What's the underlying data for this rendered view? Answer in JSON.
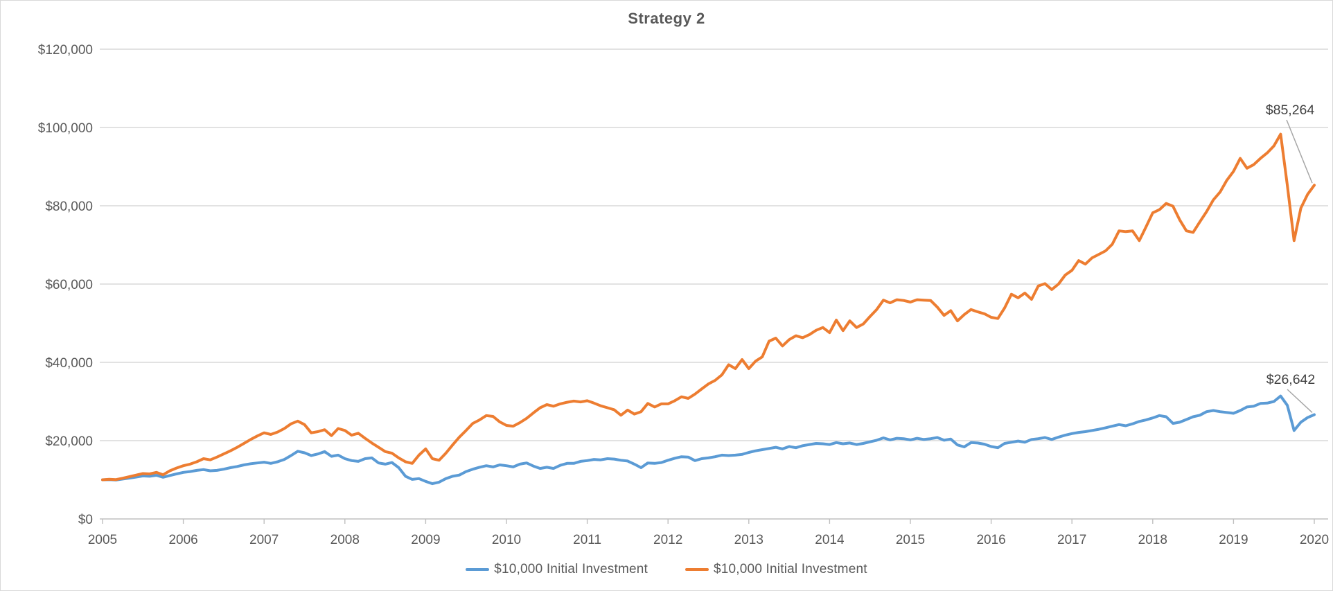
{
  "title": "Strategy 2",
  "legend": [
    {
      "label": "$10,000 Initial Investment",
      "color": "#5B9BD5"
    },
    {
      "label": "$10,000 Initial Investment",
      "color": "#ED7D31"
    }
  ],
  "chart_data": {
    "type": "line",
    "title": "Strategy 2",
    "xlabel": "",
    "ylabel": "",
    "ylim": [
      0,
      120000
    ],
    "grid": true,
    "legend_position": "bottom",
    "x_unit": "months from Jan 2005 to Jan 2020",
    "x_ticks": [
      "2005",
      "2006",
      "2007",
      "2008",
      "2009",
      "2010",
      "2011",
      "2012",
      "2013",
      "2014",
      "2015",
      "2016",
      "2017",
      "2018",
      "2019",
      "2020"
    ],
    "y_ticks": [
      "$0",
      "$20,000",
      "$40,000",
      "$60,000",
      "$80,000",
      "$100,000",
      "$120,000"
    ],
    "series": [
      {
        "name": "$10,000 Initial Investment",
        "color": "#5B9BD5",
        "end_label": "$26,642",
        "end_value": 26642,
        "values_thousands_usd": [
          10.0,
          10.05,
          9.95,
          10.2,
          10.45,
          10.7,
          11.0,
          10.9,
          11.15,
          10.65,
          11.1,
          11.5,
          11.9,
          12.1,
          12.4,
          12.6,
          12.3,
          12.4,
          12.7,
          13.1,
          13.4,
          13.8,
          14.1,
          14.3,
          14.5,
          14.2,
          14.6,
          15.2,
          16.2,
          17.3,
          16.9,
          16.2,
          16.6,
          17.2,
          16.0,
          16.3,
          15.4,
          14.9,
          14.7,
          15.4,
          15.6,
          14.3,
          14.0,
          14.4,
          13.1,
          10.9,
          10.1,
          10.3,
          9.6,
          9.0,
          9.4,
          10.3,
          10.9,
          11.2,
          12.1,
          12.7,
          13.2,
          13.6,
          13.3,
          13.8,
          13.6,
          13.3,
          14.0,
          14.3,
          13.5,
          12.9,
          13.2,
          12.9,
          13.7,
          14.2,
          14.2,
          14.7,
          14.9,
          15.2,
          15.1,
          15.4,
          15.3,
          15.0,
          14.8,
          14.0,
          13.1,
          14.3,
          14.2,
          14.4,
          15.0,
          15.5,
          15.9,
          15.8,
          14.9,
          15.4,
          15.6,
          15.9,
          16.3,
          16.2,
          16.3,
          16.5,
          17.0,
          17.4,
          17.7,
          18.0,
          18.3,
          17.9,
          18.5,
          18.2,
          18.7,
          19.0,
          19.3,
          19.2,
          19.0,
          19.5,
          19.2,
          19.4,
          19.0,
          19.3,
          19.7,
          20.1,
          20.7,
          20.2,
          20.6,
          20.5,
          20.2,
          20.6,
          20.3,
          20.5,
          20.8,
          20.1,
          20.4,
          18.9,
          18.4,
          19.5,
          19.4,
          19.1,
          18.5,
          18.2,
          19.3,
          19.6,
          19.9,
          19.6,
          20.3,
          20.5,
          20.8,
          20.3,
          20.9,
          21.4,
          21.8,
          22.1,
          22.3,
          22.6,
          22.9,
          23.3,
          23.7,
          24.1,
          23.8,
          24.3,
          24.9,
          25.3,
          25.8,
          26.4,
          26.1,
          24.4,
          24.7,
          25.4,
          26.1,
          26.5,
          27.4,
          27.7,
          27.4,
          27.2,
          27.0,
          27.7,
          28.6,
          28.8,
          29.5,
          29.6,
          30.0,
          31.4,
          29.0,
          22.6,
          24.7,
          25.9,
          26.642
        ]
      },
      {
        "name": "$10,000 Initial Investment",
        "color": "#ED7D31",
        "end_label": "$85,264",
        "end_value": 85264,
        "values_thousands_usd": [
          10.0,
          10.15,
          10.05,
          10.4,
          10.8,
          11.2,
          11.6,
          11.5,
          11.9,
          11.3,
          12.3,
          13.0,
          13.6,
          14.0,
          14.6,
          15.4,
          15.1,
          15.8,
          16.6,
          17.4,
          18.3,
          19.3,
          20.3,
          21.2,
          22.0,
          21.6,
          22.2,
          23.1,
          24.3,
          25.0,
          24.1,
          22.0,
          22.3,
          22.8,
          21.3,
          23.1,
          22.6,
          21.4,
          21.9,
          20.6,
          19.4,
          18.3,
          17.2,
          16.8,
          15.6,
          14.6,
          14.2,
          16.3,
          17.9,
          15.4,
          15.0,
          16.8,
          18.9,
          20.9,
          22.6,
          24.4,
          25.3,
          26.4,
          26.2,
          24.8,
          23.9,
          23.7,
          24.6,
          25.7,
          27.1,
          28.4,
          29.2,
          28.8,
          29.4,
          29.8,
          30.1,
          29.9,
          30.2,
          29.6,
          28.9,
          28.4,
          27.9,
          26.5,
          27.8,
          26.8,
          27.4,
          29.5,
          28.6,
          29.4,
          29.4,
          30.2,
          31.2,
          30.8,
          31.9,
          33.2,
          34.5,
          35.4,
          36.8,
          39.4,
          38.4,
          40.7,
          38.4,
          40.3,
          41.4,
          45.4,
          46.2,
          44.2,
          45.8,
          46.8,
          46.3,
          47.1,
          48.2,
          48.9,
          47.6,
          50.8,
          48.1,
          50.6,
          48.9,
          49.8,
          51.7,
          53.5,
          55.9,
          55.2,
          56.0,
          55.8,
          55.4,
          56.0,
          55.9,
          55.8,
          54.1,
          52.0,
          53.2,
          50.6,
          52.2,
          53.5,
          52.9,
          52.4,
          51.5,
          51.2,
          53.9,
          57.4,
          56.5,
          57.7,
          56.1,
          59.5,
          60.1,
          58.6,
          60.0,
          62.3,
          63.5,
          66.0,
          65.1,
          66.7,
          67.6,
          68.5,
          70.2,
          73.6,
          73.4,
          73.6,
          71.1,
          74.6,
          78.2,
          79.0,
          80.6,
          79.9,
          76.4,
          73.6,
          73.2,
          75.9,
          78.5,
          81.5,
          83.5,
          86.5,
          88.8,
          92.1,
          89.6,
          90.5,
          92.1,
          93.5,
          95.3,
          98.3,
          85.2,
          71.1,
          79.4,
          82.9,
          85.264
        ]
      }
    ]
  }
}
